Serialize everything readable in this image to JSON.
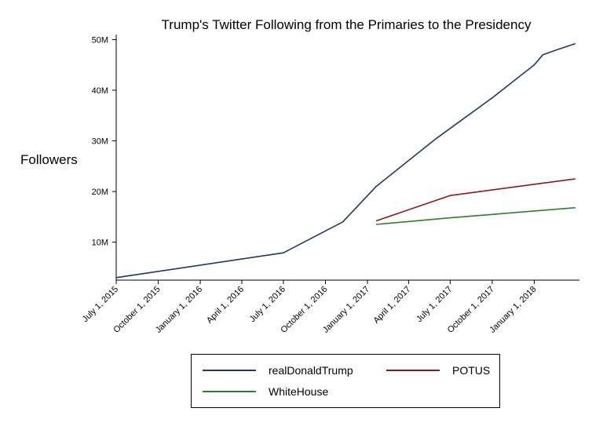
{
  "chart_data": {
    "type": "line",
    "title": "Trump's Twitter Following from the Primaries to the Presidency",
    "xlabel": "",
    "ylabel": "Followers",
    "x_ticks": [
      "July 1, 2015",
      "October 1, 2015",
      "January 1, 2016",
      "April 1, 2016",
      "July 1, 2016",
      "October 1, 2016",
      "January 1, 2017",
      "April 1, 2017",
      "July 1, 2017",
      "October 1, 2017",
      "January 1, 2018"
    ],
    "y_ticks": [
      "10M",
      "20M",
      "30M",
      "40M",
      "50M"
    ],
    "y_tick_values": [
      10,
      20,
      30,
      40,
      50
    ],
    "y_unit": "M",
    "xlim": [
      "2015-07-01",
      "2018-04-10"
    ],
    "ylim": [
      2.5,
      51
    ],
    "grid": false,
    "legend_position": "bottom",
    "series": [
      {
        "name": "realDonaldTrump",
        "color": "#1f3864",
        "points": [
          [
            "2015-07-01",
            3.0
          ],
          [
            "2016-07-01",
            7.9
          ],
          [
            "2016-11-08",
            14.0
          ],
          [
            "2017-01-20",
            21.0
          ],
          [
            "2017-06-01",
            30.5
          ],
          [
            "2017-10-01",
            38.5
          ],
          [
            "2018-01-01",
            45.0
          ],
          [
            "2018-01-20",
            47.0
          ],
          [
            "2018-02-20",
            48.0
          ],
          [
            "2018-04-01",
            49.2
          ]
        ]
      },
      {
        "name": "POTUS",
        "color": "#8b1a1a",
        "points": [
          [
            "2017-01-20",
            14.2
          ],
          [
            "2017-07-01",
            19.2
          ],
          [
            "2018-04-01",
            22.5
          ]
        ]
      },
      {
        "name": "WhiteHouse",
        "color": "#2e7d32",
        "points": [
          [
            "2017-01-20",
            13.5
          ],
          [
            "2017-07-01",
            14.8
          ],
          [
            "2018-04-01",
            16.8
          ]
        ]
      }
    ]
  }
}
